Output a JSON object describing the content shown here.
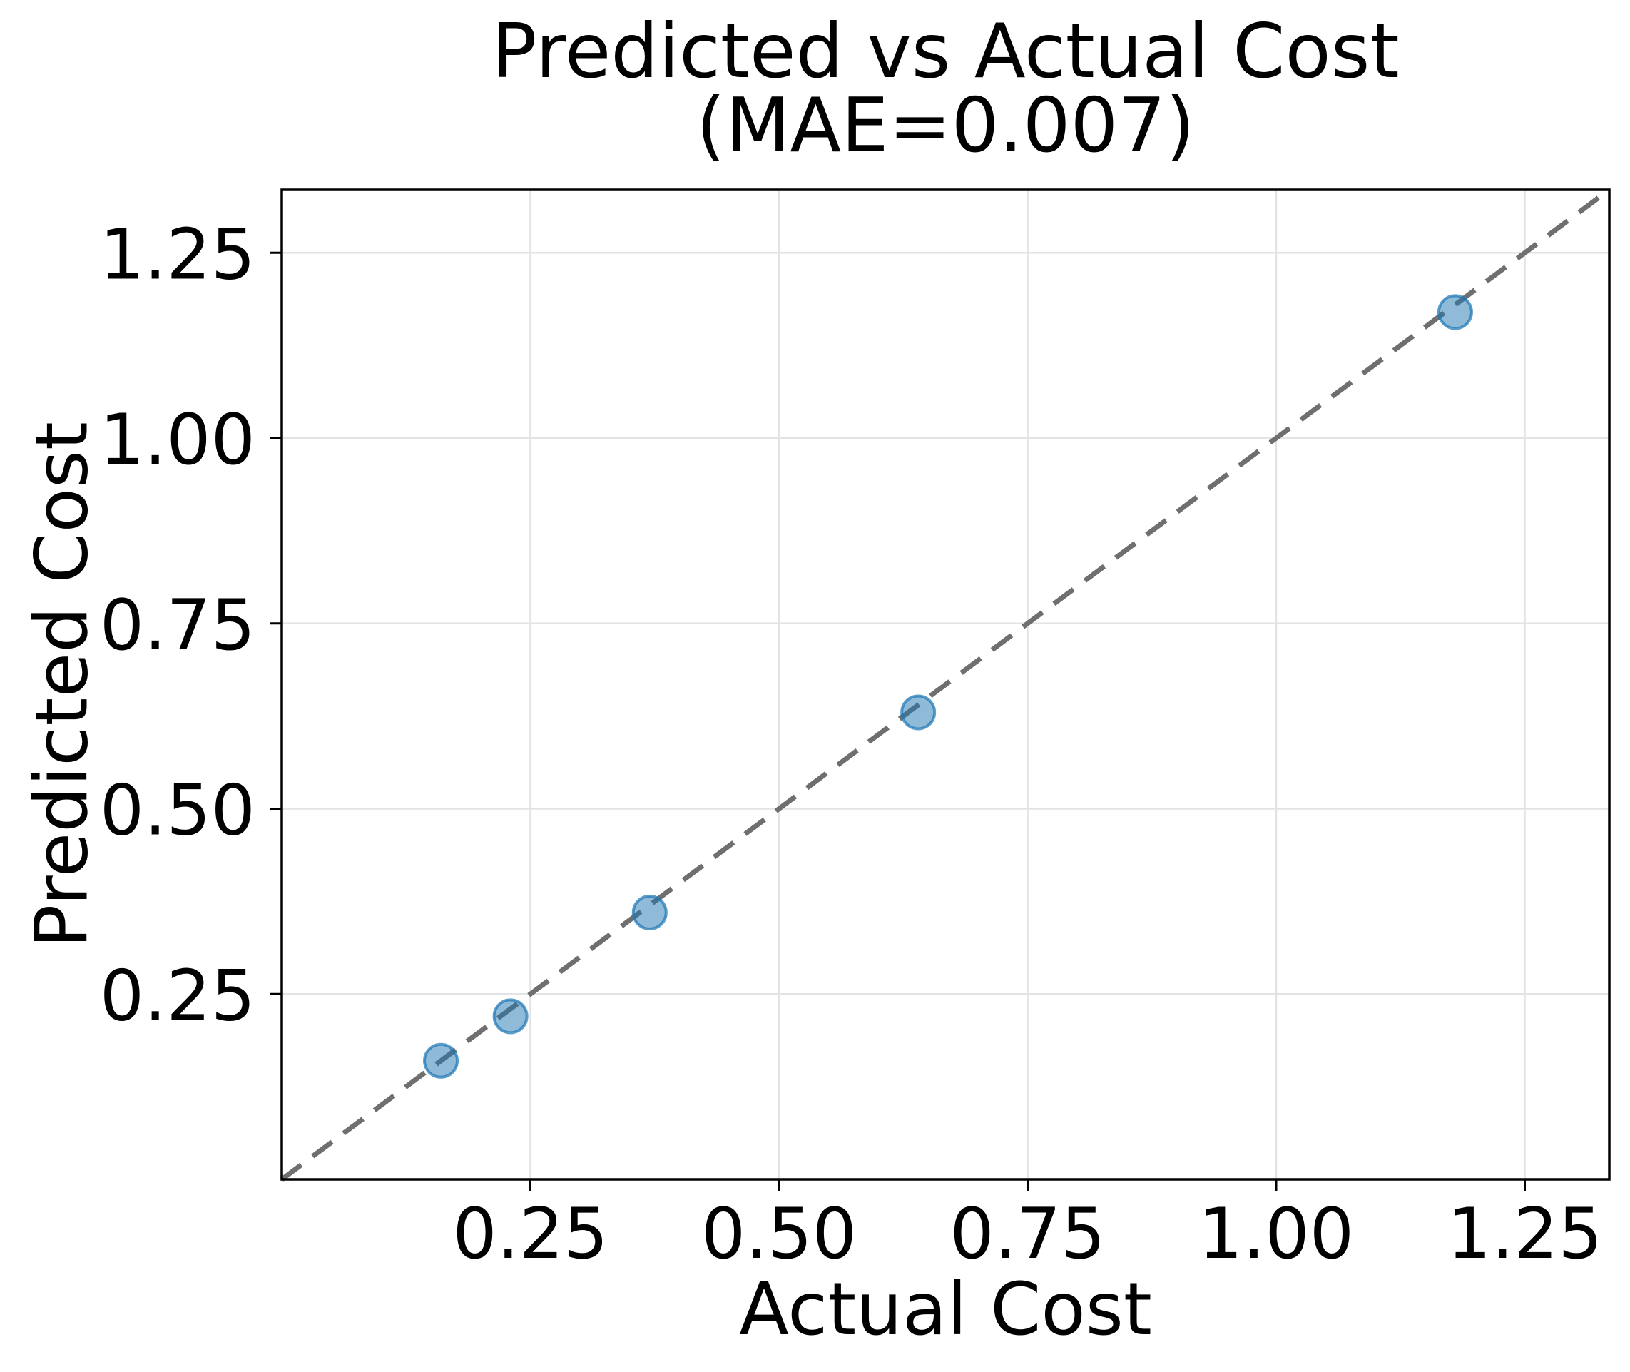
{
  "figure": {
    "title_line1": "Predicted vs Actual Cost",
    "title_line2": "(MAE=0.007)",
    "xlabel": "Actual Cost",
    "ylabel": "Predicted Cost"
  },
  "chart_data": {
    "type": "scatter",
    "title": "Predicted vs Actual Cost (MAE=0.007)",
    "mae": 0.007,
    "xlabel": "Actual Cost",
    "ylabel": "Predicted Cost",
    "xlim": [
      0,
      1.335
    ],
    "ylim": [
      0,
      1.335
    ],
    "xticks": [
      0.25,
      0.5,
      0.75,
      1.0,
      1.25
    ],
    "xtick_labels": [
      "0.25",
      "0.50",
      "0.75",
      "1.00",
      "1.25"
    ],
    "yticks": [
      0.25,
      0.5,
      0.75,
      1.0,
      1.25
    ],
    "ytick_labels": [
      "0.25",
      "0.50",
      "0.75",
      "1.00",
      "1.25"
    ],
    "grid": true,
    "legend": "none",
    "points": [
      {
        "actual": 0.16,
        "predicted": 0.16
      },
      {
        "actual": 0.23,
        "predicted": 0.22
      },
      {
        "actual": 0.37,
        "predicted": 0.36
      },
      {
        "actual": 0.64,
        "predicted": 0.63
      },
      {
        "actual": 1.18,
        "predicted": 1.17
      }
    ],
    "identity_line": {
      "style": "dashed",
      "x0": 0,
      "y0": 0,
      "x1": 1.335,
      "y1": 1.335
    },
    "colors": {
      "point_fill": "rgba(31,119,180,0.5)",
      "point_edge": "rgba(31,119,180,0.72)",
      "identity_line": "#6f6f6f",
      "grid": "#e3e3e3",
      "spine": "#000000",
      "text": "#000000",
      "background": "#ffffff"
    }
  }
}
